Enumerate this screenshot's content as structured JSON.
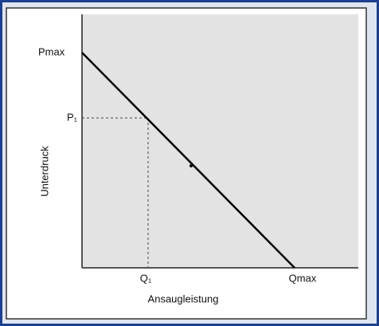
{
  "diagram": {
    "y_axis_label": "Unterdruck",
    "x_axis_label": "Ansaugleistung",
    "y_labels": [
      "Pmax",
      "P₁"
    ],
    "x_labels": [
      "Q₁",
      "Qmax"
    ]
  }
}
